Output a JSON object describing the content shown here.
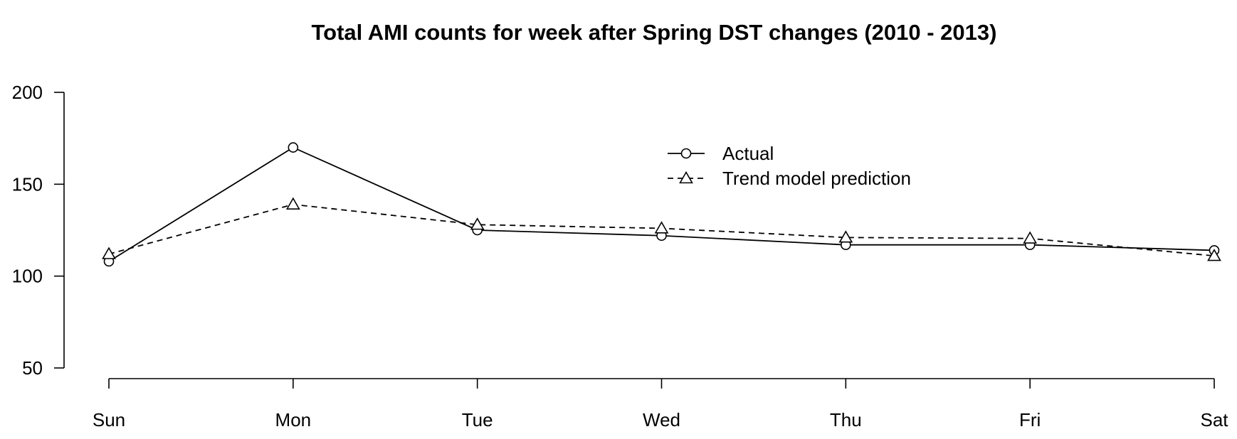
{
  "chart_data": {
    "type": "line",
    "title": "Total AMI counts for week after Spring DST changes (2010 - 2013)",
    "xlabel": "",
    "ylabel": "",
    "categories": [
      "Sun",
      "Mon",
      "Tue",
      "Wed",
      "Thu",
      "Fri",
      "Sat"
    ],
    "ylim": [
      50,
      200
    ],
    "yticks": [
      50,
      100,
      150,
      200
    ],
    "grid": false,
    "legend_position": "top-center",
    "series": [
      {
        "name": "Actual",
        "values": [
          108,
          170,
          125,
          122,
          117,
          117,
          114
        ],
        "line_style": "solid",
        "marker": "circle"
      },
      {
        "name": "Trend model prediction",
        "values": [
          112,
          139,
          128,
          126,
          121,
          120.5,
          111
        ],
        "line_style": "dashed",
        "marker": "triangle"
      }
    ]
  }
}
